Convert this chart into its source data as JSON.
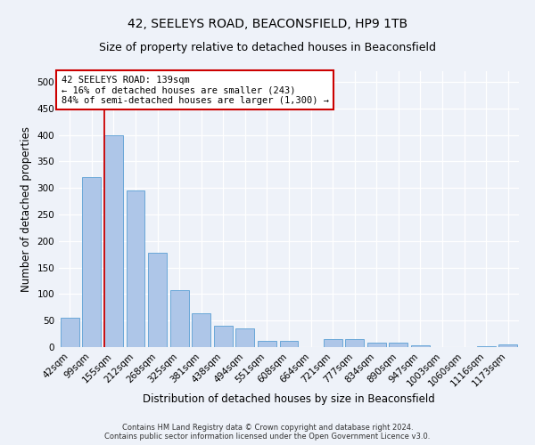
{
  "title": "42, SEELEYS ROAD, BEACONSFIELD, HP9 1TB",
  "subtitle": "Size of property relative to detached houses in Beaconsfield",
  "xlabel": "Distribution of detached houses by size in Beaconsfield",
  "ylabel": "Number of detached properties",
  "categories": [
    "42sqm",
    "99sqm",
    "155sqm",
    "212sqm",
    "268sqm",
    "325sqm",
    "381sqm",
    "438sqm",
    "494sqm",
    "551sqm",
    "608sqm",
    "664sqm",
    "721sqm",
    "777sqm",
    "834sqm",
    "890sqm",
    "947sqm",
    "1003sqm",
    "1060sqm",
    "1116sqm",
    "1173sqm"
  ],
  "values": [
    55,
    320,
    400,
    295,
    178,
    108,
    63,
    41,
    36,
    11,
    11,
    0,
    15,
    15,
    8,
    9,
    3,
    0,
    0,
    2,
    5
  ],
  "bar_color": "#aec6e8",
  "bar_edge_color": "#5a9fd4",
  "marker_label": "42 SEELEYS ROAD: 139sqm",
  "annotation_line1": "← 16% of detached houses are smaller (243)",
  "annotation_line2": "84% of semi-detached houses are larger (1,300) →",
  "annotation_box_color": "#ffffff",
  "annotation_box_edge": "#cc0000",
  "vline_color": "#cc0000",
  "footer_line1": "Contains HM Land Registry data © Crown copyright and database right 2024.",
  "footer_line2": "Contains public sector information licensed under the Open Government Licence v3.0.",
  "ylim": [
    0,
    520
  ],
  "yticks": [
    0,
    50,
    100,
    150,
    200,
    250,
    300,
    350,
    400,
    450,
    500
  ],
  "bg_color": "#eef2f9",
  "grid_color": "#ffffff",
  "title_fontsize": 10,
  "subtitle_fontsize": 9,
  "axis_label_fontsize": 8.5,
  "tick_fontsize": 7.5,
  "annotation_fontsize": 7.5,
  "footer_fontsize": 6
}
